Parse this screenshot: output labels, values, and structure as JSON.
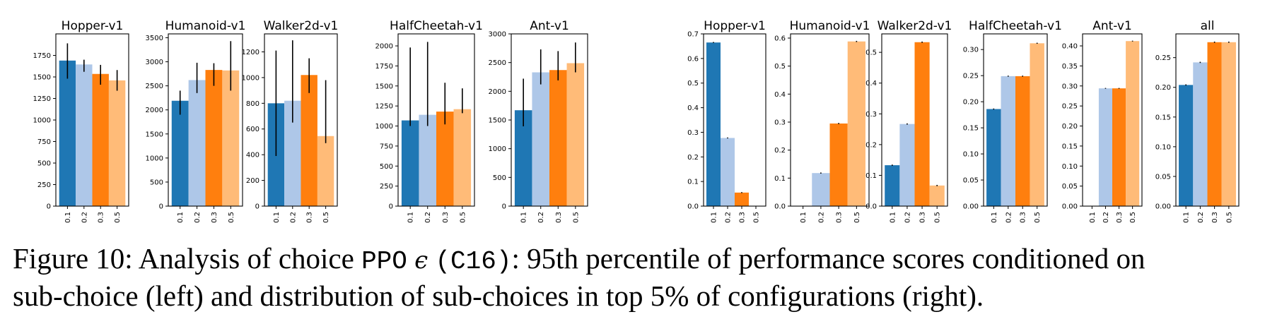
{
  "colors": [
    "#1f77b4",
    "#aec7e8",
    "#ff7f0e",
    "#ffbb78"
  ],
  "caption": {
    "figure_label": "Figure 10:",
    "text_1": "Analysis of choice",
    "code": "PPO",
    "symbol": "ϵ",
    "code_id": "(C16)",
    "text_2": ": 95th percentile of performance scores conditioned on",
    "line_2": "sub-choice (left) and distribution of sub-choices in top 5% of configurations (right)."
  },
  "chart_data": [
    {
      "type": "bar",
      "title": "Hopper-v1",
      "categories": [
        "0.1",
        "0.2",
        "0.3",
        "0.5"
      ],
      "values": [
        1690,
        1645,
        1535,
        1460
      ],
      "errors": [
        [
          1480,
          1890
        ],
        [
          1560,
          1700
        ],
        [
          1410,
          1640
        ],
        [
          1340,
          1580
        ]
      ],
      "ylim": [
        0,
        2000
      ],
      "yticks": [
        0,
        250,
        500,
        750,
        1000,
        1250,
        1500,
        1750
      ],
      "ytick_labels": [
        "0",
        "250",
        "500",
        "750",
        "1000",
        "1250",
        "1500",
        "1750"
      ]
    },
    {
      "type": "bar",
      "title": "Humanoid-v1",
      "categories": [
        "0.1",
        "0.2",
        "0.3",
        "0.5"
      ],
      "values": [
        2190,
        2620,
        2830,
        2820
      ],
      "errors": [
        [
          1900,
          2400
        ],
        [
          2350,
          2980
        ],
        [
          2500,
          2970
        ],
        [
          2400,
          3430
        ]
      ],
      "ylim": [
        0,
        3580
      ],
      "yticks": [
        0,
        500,
        1000,
        1500,
        2000,
        2500,
        3000,
        3500
      ],
      "ytick_labels": [
        "0",
        "500",
        "1000",
        "1500",
        "2000",
        "2500",
        "3000",
        "3500"
      ]
    },
    {
      "type": "bar",
      "title": "Walker2d-v1",
      "categories": [
        "0.1",
        "0.2",
        "0.3",
        "0.5"
      ],
      "values": [
        800,
        820,
        1020,
        545
      ],
      "errors": [
        [
          390,
          1210
        ],
        [
          650,
          1290
        ],
        [
          880,
          1150
        ],
        [
          490,
          980
        ]
      ],
      "ylim": [
        0,
        1340
      ],
      "yticks": [
        0,
        200,
        400,
        600,
        800,
        1000,
        1200
      ],
      "ytick_labels": [
        "0",
        "200",
        "400",
        "600",
        "800",
        "1000",
        "1200"
      ]
    },
    {
      "type": "bar",
      "title": "HalfCheetah-v1",
      "categories": [
        "0.1",
        "0.2",
        "0.3",
        "0.5"
      ],
      "values": [
        1070,
        1140,
        1180,
        1210
      ],
      "errors": [
        [
          1000,
          1980
        ],
        [
          1000,
          2050
        ],
        [
          1020,
          1540
        ],
        [
          1160,
          1470
        ]
      ],
      "ylim": [
        0,
        2150
      ],
      "yticks": [
        0,
        250,
        500,
        750,
        1000,
        1250,
        1500,
        1750,
        2000
      ],
      "ytick_labels": [
        "0",
        "250",
        "500",
        "750",
        "1000",
        "1250",
        "1500",
        "1750",
        "2000"
      ]
    },
    {
      "type": "bar",
      "title": "Ant-v1",
      "categories": [
        "0.1",
        "0.2",
        "0.3",
        "0.5"
      ],
      "values": [
        1670,
        2330,
        2370,
        2490
      ],
      "errors": [
        [
          1390,
          2220
        ],
        [
          2120,
          2730
        ],
        [
          2190,
          2700
        ],
        [
          2330,
          2850
        ]
      ],
      "ylim": [
        0,
        3000
      ],
      "yticks": [
        0,
        500,
        1000,
        1500,
        2000,
        2500,
        3000
      ],
      "ytick_labels": [
        "0",
        "500",
        "1000",
        "1500",
        "2000",
        "2500",
        "3000"
      ]
    },
    {
      "type": "bar",
      "title": "Hopper-v1",
      "categories": [
        "0.1",
        "0.2",
        "0.3",
        "0.5"
      ],
      "values": [
        0.665,
        0.277,
        0.055,
        0.0
      ],
      "errors": [
        [
          0.663,
          0.667
        ],
        [
          0.275,
          0.279
        ],
        [
          0.053,
          0.057
        ],
        null
      ],
      "ylim": [
        0,
        0.7
      ],
      "yticks": [
        0,
        0.1,
        0.2,
        0.3,
        0.4,
        0.5,
        0.6,
        0.7
      ],
      "ytick_labels": [
        "0.0",
        "0.1",
        "0.2",
        "0.3",
        "0.4",
        "0.5",
        "0.6",
        "0.7"
      ]
    },
    {
      "type": "bar",
      "title": "Humanoid-v1",
      "categories": [
        "0.1",
        "0.2",
        "0.3",
        "0.5"
      ],
      "values": [
        0.0,
        0.118,
        0.295,
        0.588
      ],
      "errors": [
        null,
        [
          0.116,
          0.12
        ],
        [
          0.293,
          0.297
        ],
        [
          0.586,
          0.59
        ]
      ],
      "ylim": [
        0,
        0.615
      ],
      "yticks": [
        0,
        0.1,
        0.2,
        0.3,
        0.4,
        0.5,
        0.6
      ],
      "ytick_labels": [
        "0.0",
        "0.1",
        "0.2",
        "0.3",
        "0.4",
        "0.5",
        "0.6"
      ]
    },
    {
      "type": "bar",
      "title": "Walker2d-v1",
      "categories": [
        "0.1",
        "0.2",
        "0.3",
        "0.5"
      ],
      "values": [
        0.133,
        0.267,
        0.533,
        0.067
      ],
      "errors": [
        [
          0.131,
          0.135
        ],
        [
          0.265,
          0.269
        ],
        [
          0.531,
          0.535
        ],
        [
          0.065,
          0.069
        ]
      ],
      "ylim": [
        0,
        0.56
      ],
      "yticks": [
        0,
        0.1,
        0.2,
        0.3,
        0.4,
        0.5
      ],
      "ytick_labels": [
        "0.0",
        "0.1",
        "0.2",
        "0.3",
        "0.4",
        "0.5"
      ]
    },
    {
      "type": "bar",
      "title": "HalfCheetah-v1",
      "categories": [
        "0.1",
        "0.2",
        "0.3",
        "0.5"
      ],
      "values": [
        0.186,
        0.249,
        0.249,
        0.312
      ],
      "errors": [
        [
          0.185,
          0.187
        ],
        [
          0.248,
          0.25
        ],
        [
          0.248,
          0.25
        ],
        [
          0.311,
          0.313
        ]
      ],
      "ylim": [
        0,
        0.33
      ],
      "yticks": [
        0,
        0.05,
        0.1,
        0.15,
        0.2,
        0.25,
        0.3
      ],
      "ytick_labels": [
        "0.00",
        "0.05",
        "0.10",
        "0.15",
        "0.20",
        "0.25",
        "0.30"
      ]
    },
    {
      "type": "bar",
      "title": "Ant-v1",
      "categories": [
        "0.1",
        "0.2",
        "0.3",
        "0.5"
      ],
      "values": [
        0.0,
        0.294,
        0.294,
        0.412
      ],
      "errors": [
        null,
        [
          0.293,
          0.295
        ],
        [
          0.293,
          0.295
        ],
        [
          0.411,
          0.413
        ]
      ],
      "ylim": [
        0,
        0.43
      ],
      "yticks": [
        0,
        0.05,
        0.1,
        0.15,
        0.2,
        0.25,
        0.3,
        0.35,
        0.4
      ],
      "ytick_labels": [
        "0.00",
        "0.05",
        "0.10",
        "0.15",
        "0.20",
        "0.25",
        "0.30",
        "0.35",
        "0.40"
      ]
    },
    {
      "type": "bar",
      "title": "all",
      "categories": [
        "0.1",
        "0.2",
        "0.3",
        "0.5"
      ],
      "values": [
        0.204,
        0.242,
        0.276,
        0.276
      ],
      "errors": [
        [
          0.203,
          0.205
        ],
        [
          0.241,
          0.243
        ],
        [
          0.275,
          0.277
        ],
        [
          0.275,
          0.277
        ]
      ],
      "ylim": [
        0,
        0.29
      ],
      "yticks": [
        0,
        0.05,
        0.1,
        0.15,
        0.2,
        0.25
      ],
      "ytick_labels": [
        "0.00",
        "0.05",
        "0.10",
        "0.15",
        "0.20",
        "0.25"
      ]
    }
  ]
}
